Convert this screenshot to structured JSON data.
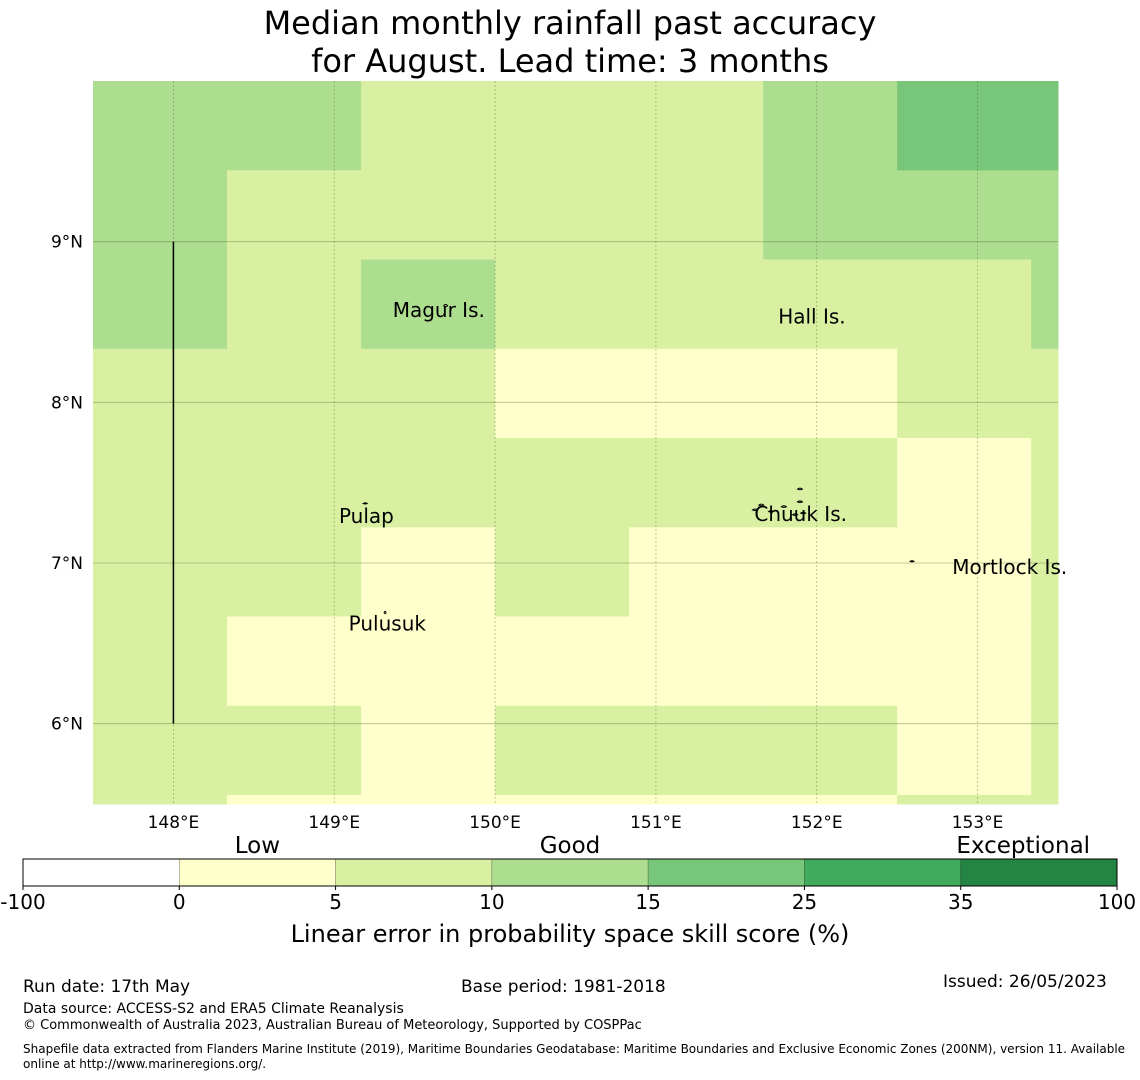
{
  "title_lines": [
    "Median monthly rainfall past accuracy",
    "for August. Lead time: 3 months"
  ],
  "map": {
    "lon_range": [
      147.5,
      153.5
    ],
    "lat_range": [
      5.5,
      10.0
    ],
    "lon_ticks": [
      {
        "value": 148,
        "label": "148°E"
      },
      {
        "value": 149,
        "label": "149°E"
      },
      {
        "value": 150,
        "label": "150°E"
      },
      {
        "value": 151,
        "label": "151°E"
      },
      {
        "value": 152,
        "label": "152°E"
      },
      {
        "value": 153,
        "label": "153°E"
      }
    ],
    "lat_ticks": [
      {
        "value": 9,
        "label": "9°N"
      },
      {
        "value": 8,
        "label": "8°N"
      },
      {
        "value": 7,
        "label": "7°N"
      },
      {
        "value": 6,
        "label": "6°N"
      }
    ],
    "gridlines": true,
    "grid_lon": [
      147.5,
      148.333,
      149.167,
      150.0,
      150.833,
      151.667,
      152.5,
      153.333,
      153.5
    ],
    "grid_lat": [
      10.0,
      9.444,
      8.889,
      8.333,
      7.778,
      7.222,
      6.667,
      6.111,
      5.556,
      5.5
    ],
    "skill_class_grid": [
      [
        3,
        3,
        2,
        2,
        2,
        3,
        4,
        4
      ],
      [
        3,
        2,
        2,
        2,
        2,
        3,
        3,
        3
      ],
      [
        3,
        2,
        3,
        2,
        2,
        2,
        2,
        3
      ],
      [
        2,
        2,
        2,
        1,
        1,
        1,
        2,
        2
      ],
      [
        2,
        2,
        2,
        2,
        2,
        2,
        1,
        2
      ],
      [
        2,
        2,
        1,
        2,
        1,
        1,
        1,
        2
      ],
      [
        2,
        1,
        1,
        1,
        1,
        1,
        1,
        2
      ],
      [
        2,
        2,
        1,
        2,
        2,
        2,
        1,
        2
      ],
      [
        2,
        1,
        1,
        1,
        1,
        1,
        2,
        2
      ]
    ],
    "boundary_line": {
      "lon": 148.0,
      "lat_from": 6.0,
      "lat_to": 9.0
    },
    "places": [
      {
        "name": "Magur Is.",
        "lon": 149.65,
        "lat": 8.53
      },
      {
        "name": "Hall Is.",
        "lon": 151.97,
        "lat": 8.49
      },
      {
        "name": "Pulap",
        "lon": 149.2,
        "lat": 7.25
      },
      {
        "name": "Chuuk Is.",
        "lon": 151.9,
        "lat": 7.26
      },
      {
        "name": "Mortlock Is.",
        "lon": 153.2,
        "lat": 6.93
      },
      {
        "name": "Pulusuk",
        "lon": 149.33,
        "lat": 6.58
      }
    ]
  },
  "colorbar": {
    "category_labels": [
      {
        "label": "Low",
        "boundary_index": 1.5
      },
      {
        "label": "Good",
        "boundary_index": 3.5
      },
      {
        "label": "Exceptional",
        "boundary_index": 6.4
      }
    ],
    "boundaries": [
      "-100",
      "0",
      "5",
      "10",
      "15",
      "25",
      "35",
      "100"
    ],
    "colors": [
      "#ffffff",
      "#ffffcc",
      "#d9f0a3",
      "#addd8e",
      "#78c679",
      "#41ab5d",
      "#238443"
    ],
    "label": "Linear error in probability space skill score (%)"
  },
  "footer": {
    "run_date": "Run date: 17th May",
    "base_period": "Base period: 1981-2018",
    "issued": "Issued: 26/05/2023",
    "data_source": "Data source: ACCESS-S2 and ERA5 Climate Reanalysis",
    "copyright": "© Commonwealth of Australia 2023, Australian Bureau of Meteorology, Supported by COSPPac",
    "shapefile": "Shapefile data extracted from Flanders Marine Institute (2019), Maritime Boundaries Geodatabase: Maritime Boundaries and Exclusive Economic Zones (200NM), version 11. Available online at http://www.marineregions.org/."
  }
}
